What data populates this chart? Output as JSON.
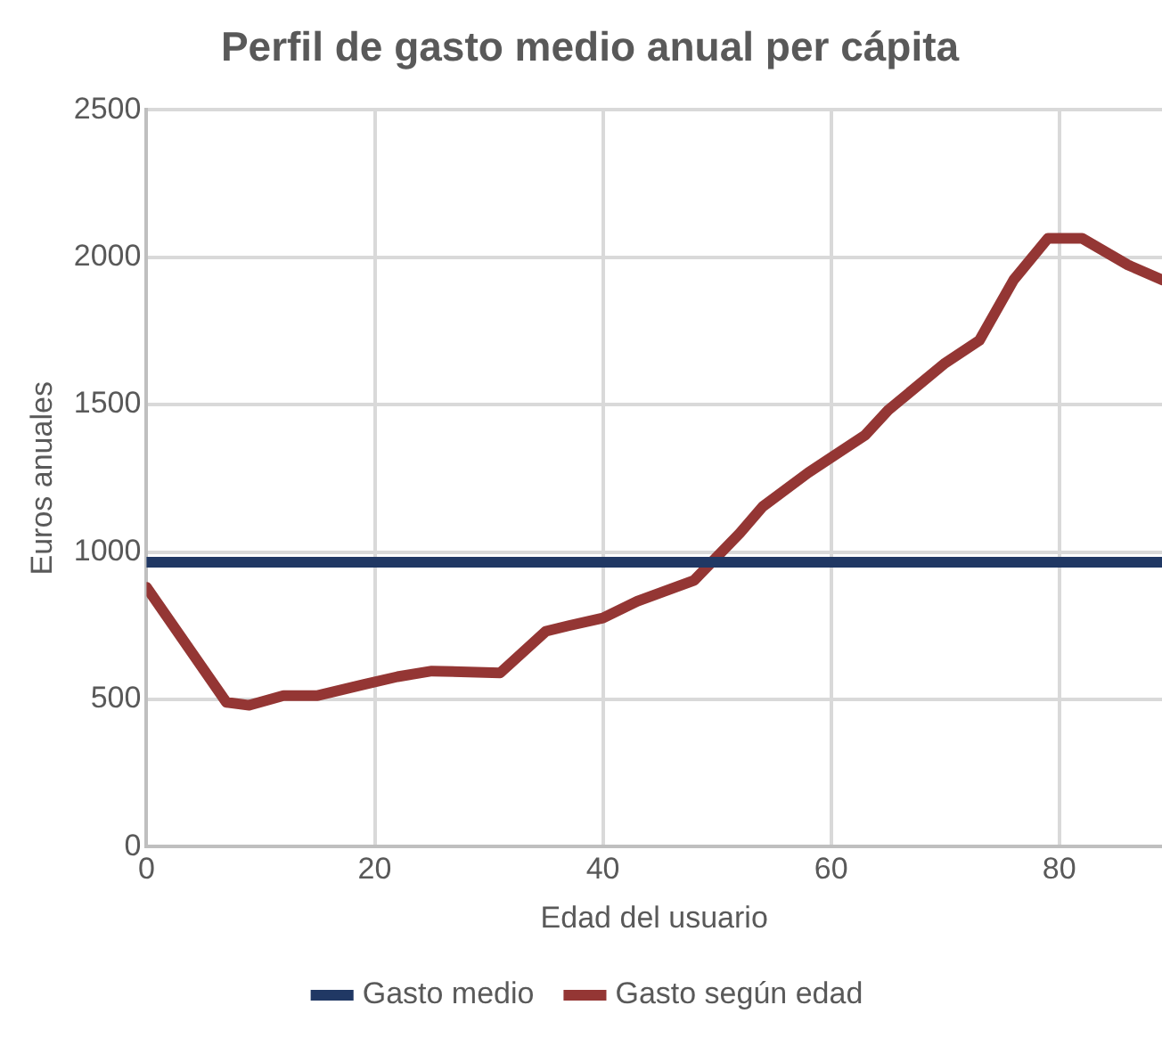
{
  "chart_data": {
    "type": "line",
    "title": "Perfil de gasto medio anual per cápita",
    "xlabel": "Edad del usuario",
    "ylabel": "Euros anuales",
    "xlim": [
      0,
      89
    ],
    "xticks": [
      0,
      20,
      40,
      60,
      80
    ],
    "ylim": [
      0,
      2500
    ],
    "yticks": [
      0,
      500,
      1000,
      1500,
      2000,
      2500
    ],
    "grid": true,
    "legend": "bottom",
    "marker": "none",
    "line_style": "solid",
    "series": [
      {
        "name": "Gasto medio",
        "color": "#203864",
        "x": [
          0,
          89
        ],
        "values": [
          965,
          965
        ]
      },
      {
        "name": "Gasto según edad",
        "color": "#943634",
        "x": [
          0,
          7,
          9,
          12,
          15,
          19,
          22,
          25,
          31,
          35,
          37,
          40,
          43,
          48,
          52,
          54,
          58,
          63,
          65,
          70,
          73,
          76,
          79,
          82,
          86,
          89
        ],
        "values": [
          880,
          490,
          480,
          513,
          513,
          550,
          577,
          596,
          590,
          731,
          750,
          776,
          833,
          904,
          1064,
          1154,
          1269,
          1397,
          1481,
          1641,
          1718,
          1923,
          2064,
          2064,
          1974,
          1923
        ]
      }
    ]
  }
}
